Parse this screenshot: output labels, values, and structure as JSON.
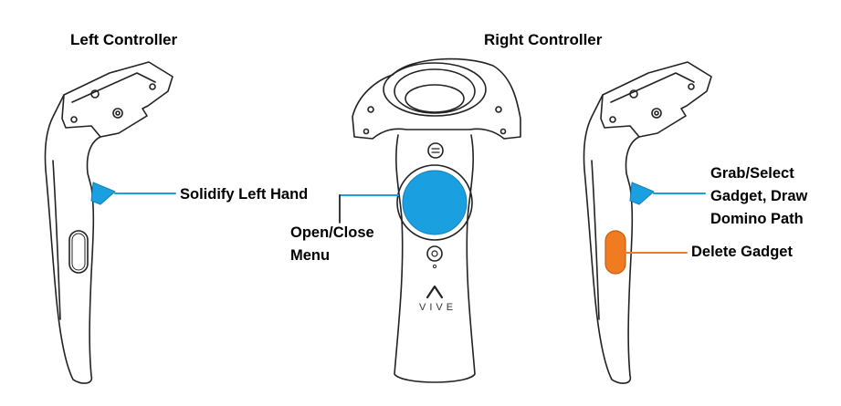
{
  "titles": {
    "left": "Left Controller",
    "right": "Right Controller"
  },
  "labels": {
    "solidify": "Solidify Left Hand",
    "menu": [
      "Open/Close",
      "Menu"
    ],
    "grab": [
      "Grab/Select",
      "Gadget, Draw",
      "Domino Path"
    ],
    "delete": "Delete Gadget"
  },
  "brand": "VIVE",
  "icons": [
    "menu-button-icon",
    "system-button-icon",
    "vive-logo-icon"
  ],
  "colors": {
    "trigger_blue": "#1aa0e1",
    "trackpad_blue": "#1aa0e1",
    "grip_orange": "#f07b21",
    "outline": "#222222"
  }
}
